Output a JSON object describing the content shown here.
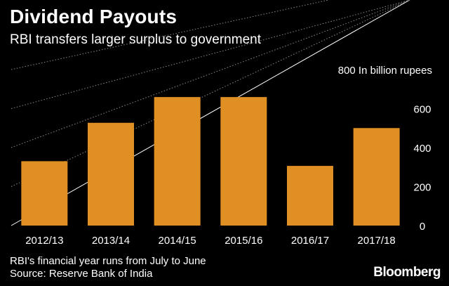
{
  "header": {
    "title": "Dividend Payouts",
    "subtitle": "RBI transfers larger surplus to government"
  },
  "chart_data": {
    "type": "bar",
    "title": "Dividend Payouts",
    "subtitle": "RBI transfers larger surplus to government",
    "categories": [
      "2012/13",
      "2013/14",
      "2014/15",
      "2015/16",
      "2016/17",
      "2017/18"
    ],
    "values": [
      330,
      527,
      659,
      659,
      306,
      500
    ],
    "unit_label": "In billion rupees",
    "ylim": [
      0,
      800
    ],
    "yticks": [
      0,
      200,
      400,
      600,
      800
    ],
    "grid": true,
    "bar_color": "#e08f22",
    "background": "#000000"
  },
  "footer": {
    "note": "RBI's financial year runs from July to June",
    "source": "Source: Reserve Bank of India",
    "brand": "Bloomberg"
  }
}
